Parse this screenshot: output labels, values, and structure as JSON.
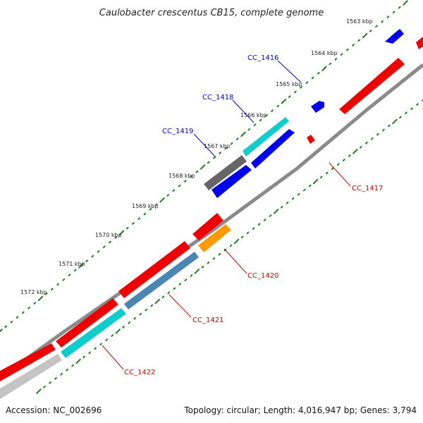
{
  "title": "Caulobacter crescentus CB15, complete genome",
  "footer": {
    "accession": "Accession: NC_002696",
    "summary": "Topology: circular; Length: 4,016,947 bp; Genes: 3,794"
  },
  "colors": {
    "backbone": "#8a8a8a",
    "tick": "#1e7a1e",
    "label_forward": "#0000cc",
    "label_reverse": "#cc0000",
    "gene_red": "#ee0000",
    "gene_blue": "#0000ee",
    "gene_cyan": "#11cccc",
    "gene_gray": "#666666",
    "gene_lightgray": "#c4c4c4",
    "gene_orange": "#ff9900",
    "gene_steel": "#4a86b4"
  },
  "scale_labels": [
    "1563 kbp",
    "1564 kbp",
    "1565 kbp",
    "1566 kbp",
    "1567 kbp",
    "1568 kbp",
    "1569 kbp",
    "1570 kbp",
    "1571 kbp",
    "1572 kbp"
  ],
  "gene_labels": {
    "forward": [
      "CC_1416",
      "CC_1418",
      "CC_1419"
    ],
    "reverse": [
      "CC_1417",
      "CC_1420",
      "CC_1421",
      "CC_1422"
    ]
  }
}
